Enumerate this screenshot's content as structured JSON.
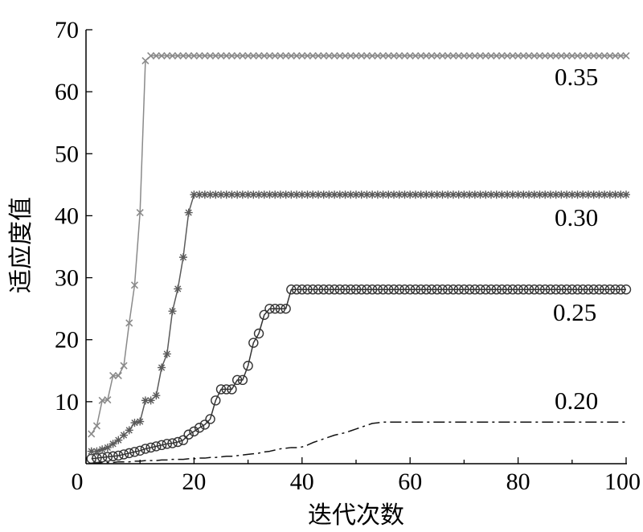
{
  "chart_data": {
    "type": "line",
    "xlabel": "迭代次数",
    "ylabel": "适应度值",
    "xlim": [
      0,
      100
    ],
    "ylim": [
      0,
      70
    ],
    "xticks": [
      0,
      20,
      40,
      60,
      80,
      100
    ],
    "yticks": [
      10,
      20,
      30,
      40,
      50,
      60,
      70
    ],
    "grid": false,
    "x": [
      1,
      2,
      3,
      4,
      5,
      6,
      7,
      8,
      9,
      10,
      11,
      12,
      13,
      14,
      15,
      16,
      17,
      18,
      19,
      20,
      21,
      22,
      23,
      24,
      25,
      26,
      27,
      28,
      29,
      30,
      31,
      32,
      33,
      34,
      35,
      36,
      37,
      38,
      39,
      40,
      41,
      42,
      43,
      44,
      45,
      46,
      47,
      48,
      49,
      50,
      51,
      52,
      53,
      54,
      55,
      56,
      57,
      58,
      59,
      60,
      61,
      62,
      63,
      64,
      65,
      66,
      67,
      68,
      69,
      70,
      71,
      72,
      73,
      74,
      75,
      76,
      77,
      78,
      79,
      80,
      81,
      82,
      83,
      84,
      85,
      86,
      87,
      88,
      89,
      90,
      91,
      92,
      93,
      94,
      95,
      96,
      97,
      98,
      99,
      100
    ],
    "series": [
      {
        "name": "0.35",
        "color": "#8a8a8a",
        "marker": "x",
        "line": "solid",
        "values": [
          4.8,
          6.1,
          10.2,
          10.3,
          14.2,
          14.2,
          15.8,
          22.7,
          28.8,
          40.5,
          65.0,
          65.8,
          65.8,
          65.8,
          65.8,
          65.8,
          65.8,
          65.8,
          65.8,
          65.8,
          65.8,
          65.8,
          65.8,
          65.8,
          65.8,
          65.8,
          65.8,
          65.8,
          65.8,
          65.8,
          65.8,
          65.8,
          65.8,
          65.8,
          65.8,
          65.8,
          65.8,
          65.8,
          65.8,
          65.8,
          65.8,
          65.8,
          65.8,
          65.8,
          65.8,
          65.8,
          65.8,
          65.8,
          65.8,
          65.8,
          65.8,
          65.8,
          65.8,
          65.8,
          65.8,
          65.8,
          65.8,
          65.8,
          65.8,
          65.8,
          65.8,
          65.8,
          65.8,
          65.8,
          65.8,
          65.8,
          65.8,
          65.8,
          65.8,
          65.8,
          65.8,
          65.8,
          65.8,
          65.8,
          65.8,
          65.8,
          65.8,
          65.8,
          65.8,
          65.8,
          65.8,
          65.8,
          65.8,
          65.8,
          65.8,
          65.8,
          65.8,
          65.8,
          65.8,
          65.8,
          65.8,
          65.8,
          65.8,
          65.8,
          65.8,
          65.8,
          65.8,
          65.8,
          65.8,
          65.8
        ]
      },
      {
        "name": "0.30",
        "color": "#5a5a5a",
        "marker": "star",
        "line": "solid",
        "values": [
          2.0,
          2.0,
          2.3,
          2.6,
          3.2,
          3.8,
          4.6,
          5.4,
          6.6,
          6.8,
          10.2,
          10.2,
          11.0,
          15.5,
          17.7,
          24.6,
          28.2,
          33.3,
          40.5,
          43.4,
          43.4,
          43.4,
          43.4,
          43.4,
          43.4,
          43.4,
          43.4,
          43.4,
          43.4,
          43.4,
          43.4,
          43.4,
          43.4,
          43.4,
          43.4,
          43.4,
          43.4,
          43.4,
          43.4,
          43.4,
          43.4,
          43.4,
          43.4,
          43.4,
          43.4,
          43.4,
          43.4,
          43.4,
          43.4,
          43.4,
          43.4,
          43.4,
          43.4,
          43.4,
          43.4,
          43.4,
          43.4,
          43.4,
          43.4,
          43.4,
          43.4,
          43.4,
          43.4,
          43.4,
          43.4,
          43.4,
          43.4,
          43.4,
          43.4,
          43.4,
          43.4,
          43.4,
          43.4,
          43.4,
          43.4,
          43.4,
          43.4,
          43.4,
          43.4,
          43.4,
          43.4,
          43.4,
          43.4,
          43.4,
          43.4,
          43.4,
          43.4,
          43.4,
          43.4,
          43.4,
          43.4,
          43.4,
          43.4,
          43.4,
          43.4,
          43.4,
          43.4,
          43.4,
          43.4,
          43.4
        ]
      },
      {
        "name": "0.25",
        "color": "#333333",
        "marker": "circle",
        "line": "solid",
        "values": [
          0.8,
          0.9,
          1.0,
          1.1,
          1.2,
          1.3,
          1.5,
          1.7,
          1.9,
          2.1,
          2.4,
          2.6,
          2.8,
          3.0,
          3.2,
          3.3,
          3.5,
          3.8,
          4.7,
          5.2,
          5.8,
          6.3,
          7.2,
          10.2,
          12.0,
          12.0,
          12.0,
          13.5,
          13.5,
          15.8,
          19.5,
          21.0,
          24.0,
          25.0,
          25.0,
          25.0,
          25.0,
          28.1,
          28.1,
          28.1,
          28.1,
          28.1,
          28.1,
          28.1,
          28.1,
          28.1,
          28.1,
          28.1,
          28.1,
          28.1,
          28.1,
          28.1,
          28.1,
          28.1,
          28.1,
          28.1,
          28.1,
          28.1,
          28.1,
          28.1,
          28.1,
          28.1,
          28.1,
          28.1,
          28.1,
          28.1,
          28.1,
          28.1,
          28.1,
          28.1,
          28.1,
          28.1,
          28.1,
          28.1,
          28.1,
          28.1,
          28.1,
          28.1,
          28.1,
          28.1,
          28.1,
          28.1,
          28.1,
          28.1,
          28.1,
          28.1,
          28.1,
          28.1,
          28.1,
          28.1,
          28.1,
          28.1,
          28.1,
          28.1,
          28.1,
          28.1,
          28.1,
          28.1,
          28.1,
          28.1
        ]
      },
      {
        "name": "0.20",
        "color": "#111111",
        "marker": "none",
        "line": "dash-dot",
        "values": [
          0.1,
          0.1,
          0.2,
          0.2,
          0.2,
          0.3,
          0.3,
          0.3,
          0.4,
          0.4,
          0.5,
          0.5,
          0.5,
          0.6,
          0.6,
          0.7,
          0.7,
          0.7,
          0.8,
          0.8,
          0.9,
          0.9,
          1.0,
          1.0,
          1.1,
          1.2,
          1.2,
          1.3,
          1.4,
          1.5,
          1.6,
          1.7,
          1.9,
          2.0,
          2.2,
          2.4,
          2.5,
          2.6,
          2.6,
          2.7,
          3.0,
          3.4,
          3.7,
          4.0,
          4.3,
          4.6,
          4.8,
          5.0,
          5.3,
          5.6,
          5.9,
          6.2,
          6.5,
          6.6,
          6.7,
          6.7,
          6.7,
          6.7,
          6.7,
          6.7,
          6.7,
          6.7,
          6.7,
          6.7,
          6.7,
          6.7,
          6.7,
          6.7,
          6.7,
          6.7,
          6.7,
          6.7,
          6.7,
          6.7,
          6.7,
          6.7,
          6.7,
          6.7,
          6.7,
          6.7,
          6.7,
          6.7,
          6.7,
          6.7,
          6.7,
          6.7,
          6.7,
          6.7,
          6.7,
          6.7,
          6.7,
          6.7,
          6.7,
          6.7,
          6.7,
          6.7,
          6.7,
          6.7,
          6.7,
          6.7
        ]
      }
    ]
  }
}
